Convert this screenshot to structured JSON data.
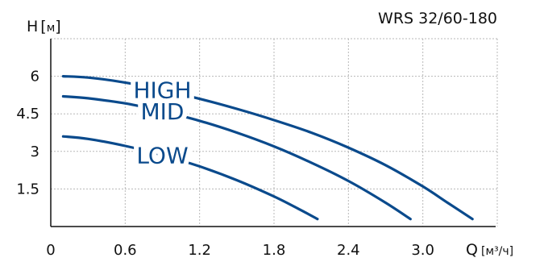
{
  "chart_data": {
    "type": "line",
    "title": "WRS 32/60-180",
    "ylabel": "H",
    "yunit": "м",
    "xlabel": "Q",
    "xunit": "м³/ч",
    "xlim": [
      0,
      3.6
    ],
    "ylim": [
      0,
      7.5
    ],
    "xticks": [
      "0",
      "0.6",
      "1.2",
      "1.8",
      "2.4",
      "3.0"
    ],
    "yticks": [
      "1.5",
      "3",
      "4.5",
      "6"
    ],
    "xtick_values": [
      0,
      0.6,
      1.2,
      1.8,
      2.4,
      3.0
    ],
    "ytick_values": [
      1.5,
      3,
      4.5,
      6
    ],
    "grid": true,
    "line_color": "#0a4a8c",
    "series": [
      {
        "name": "HIGH",
        "x": [
          0.1,
          0.3,
          0.6,
          0.9,
          1.2,
          1.5,
          1.8,
          2.1,
          2.4,
          2.7,
          3.0,
          3.2,
          3.4
        ],
        "y": [
          6.0,
          5.95,
          5.75,
          5.45,
          5.1,
          4.7,
          4.25,
          3.75,
          3.15,
          2.45,
          1.6,
          0.95,
          0.3
        ]
      },
      {
        "name": "MID",
        "x": [
          0.1,
          0.3,
          0.6,
          0.9,
          1.2,
          1.5,
          1.8,
          2.1,
          2.4,
          2.7,
          2.9
        ],
        "y": [
          5.2,
          5.12,
          4.92,
          4.6,
          4.22,
          3.75,
          3.2,
          2.55,
          1.82,
          0.95,
          0.3
        ]
      },
      {
        "name": "LOW",
        "x": [
          0.1,
          0.3,
          0.6,
          0.9,
          1.2,
          1.5,
          1.8,
          2.0,
          2.15
        ],
        "y": [
          3.6,
          3.5,
          3.22,
          2.85,
          2.4,
          1.85,
          1.2,
          0.7,
          0.3
        ]
      }
    ]
  }
}
